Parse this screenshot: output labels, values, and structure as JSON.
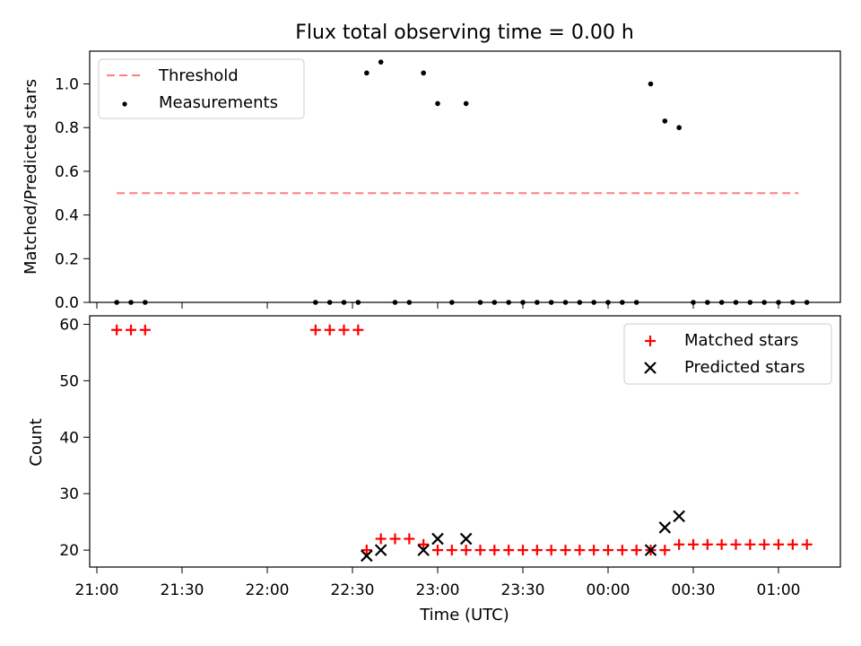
{
  "title": "Flux total observing time = 0.00 h",
  "chart_data": [
    {
      "type": "scatter",
      "panel": "top",
      "ylabel": "Matched/Predicted stars",
      "ylim": [
        0,
        1.15
      ],
      "yticks": [
        "0.0",
        "0.2",
        "0.4",
        "0.6",
        "0.8",
        "1.0"
      ],
      "legend_position": "top-left",
      "threshold": {
        "name": "Threshold",
        "value": 0.5,
        "x_start": "21:07",
        "x_end": "01:07",
        "color": "#ff7f7f"
      },
      "series": [
        {
          "name": "Measurements",
          "color": "#000000",
          "x": [
            "21:07",
            "21:12",
            "21:17",
            "22:17",
            "22:22",
            "22:27",
            "22:32",
            "22:35",
            "22:40",
            "22:45",
            "22:50",
            "22:55",
            "23:00",
            "23:05",
            "23:10",
            "23:15",
            "23:20",
            "23:25",
            "23:30",
            "23:35",
            "23:40",
            "23:45",
            "23:50",
            "23:55",
            "00:00",
            "00:05",
            "00:10",
            "00:15",
            "00:20",
            "00:25",
            "00:30",
            "00:35",
            "00:40",
            "00:45",
            "00:50",
            "00:55",
            "01:00",
            "01:05",
            "01:10"
          ],
          "y": [
            0,
            0,
            0,
            0,
            0,
            0,
            0,
            1.05,
            1.1,
            0,
            0,
            1.05,
            0.91,
            0,
            0.91,
            0,
            0,
            0,
            0,
            0,
            0,
            0,
            0,
            0,
            0,
            0,
            0,
            1.0,
            0.83,
            0.8,
            0,
            0,
            0,
            0,
            0,
            0,
            0,
            0,
            0
          ]
        }
      ]
    },
    {
      "type": "scatter",
      "panel": "bottom",
      "xlabel": "Time (UTC)",
      "ylabel": "Count",
      "ylim": [
        17,
        61.5
      ],
      "yticks": [
        "20",
        "30",
        "40",
        "50",
        "60"
      ],
      "xticks": [
        "21:00",
        "21:30",
        "22:00",
        "22:30",
        "23:00",
        "23:30",
        "00:00",
        "00:30",
        "01:00"
      ],
      "legend_position": "top-right",
      "series": [
        {
          "name": "Matched stars",
          "marker": "+",
          "color": "#ff0000",
          "x": [
            "21:07",
            "21:12",
            "21:17",
            "22:17",
            "22:22",
            "22:27",
            "22:32",
            "22:35",
            "22:40",
            "22:45",
            "22:50",
            "22:55",
            "23:00",
            "23:05",
            "23:10",
            "23:15",
            "23:20",
            "23:25",
            "23:30",
            "23:35",
            "23:40",
            "23:45",
            "23:50",
            "23:55",
            "00:00",
            "00:05",
            "00:10",
            "00:15",
            "00:20",
            "00:25",
            "00:30",
            "00:35",
            "00:40",
            "00:45",
            "00:50",
            "00:55",
            "01:00",
            "01:05",
            "01:10"
          ],
          "y": [
            59,
            59,
            59,
            59,
            59,
            59,
            59,
            20,
            22,
            22,
            22,
            21,
            20,
            20,
            20,
            20,
            20,
            20,
            20,
            20,
            20,
            20,
            20,
            20,
            20,
            20,
            20,
            20,
            20,
            21,
            21,
            21,
            21,
            21,
            21,
            21,
            21,
            21,
            21
          ]
        },
        {
          "name": "Predicted stars",
          "marker": "x",
          "color": "#000000",
          "x": [
            "22:35",
            "22:40",
            "22:55",
            "23:00",
            "23:10",
            "00:15",
            "00:20",
            "00:25"
          ],
          "y": [
            19,
            20,
            20,
            22,
            22,
            20,
            24,
            26
          ]
        }
      ]
    }
  ]
}
